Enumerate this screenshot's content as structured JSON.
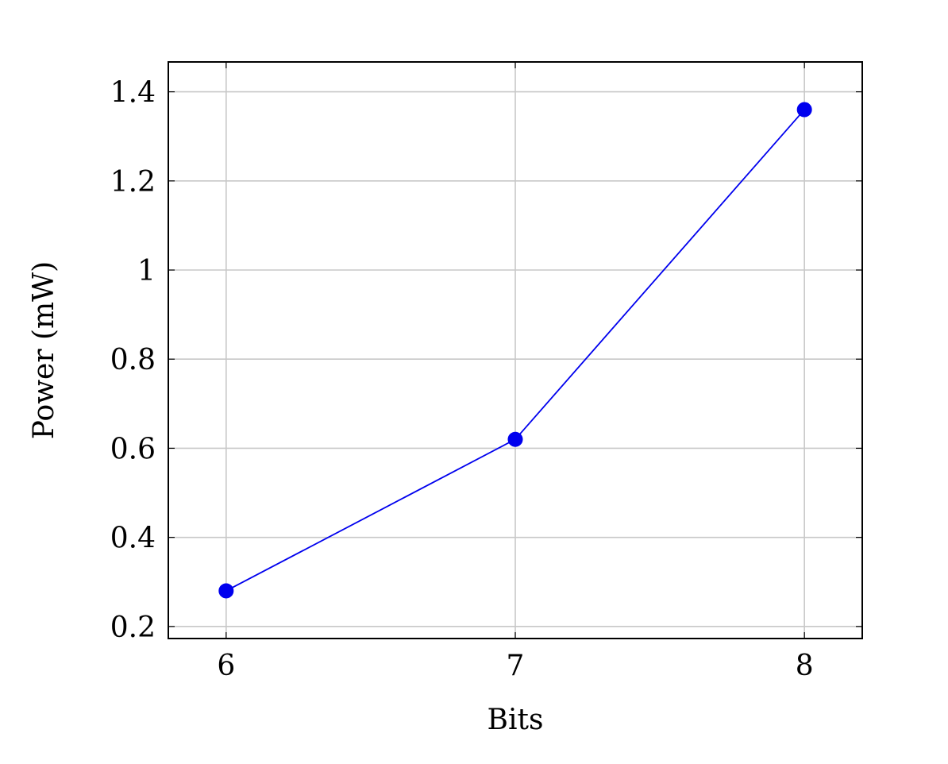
{
  "chart_data": {
    "type": "line",
    "title": "",
    "xlabel": "Bits",
    "ylabel": "Power (mW)",
    "x": [
      6,
      7,
      8
    ],
    "series": [
      {
        "values": [
          0.28,
          0.62,
          1.36
        ],
        "color": "#0000ee",
        "marker": "circle"
      }
    ],
    "xlim": [
      5.8,
      8.2
    ],
    "ylim": [
      0.173,
      1.467
    ],
    "xticks": [
      6,
      7,
      8
    ],
    "xtick_labels": [
      "6",
      "7",
      "8"
    ],
    "yticks": [
      0.2,
      0.4,
      0.6,
      0.8,
      1.0,
      1.2,
      1.4
    ],
    "ytick_labels": [
      "0.2",
      "0.4",
      "0.6",
      "0.8",
      "1",
      "1.2",
      "1.4"
    ],
    "grid": true,
    "grid_color": "#c8c8c8",
    "legend": "none"
  }
}
